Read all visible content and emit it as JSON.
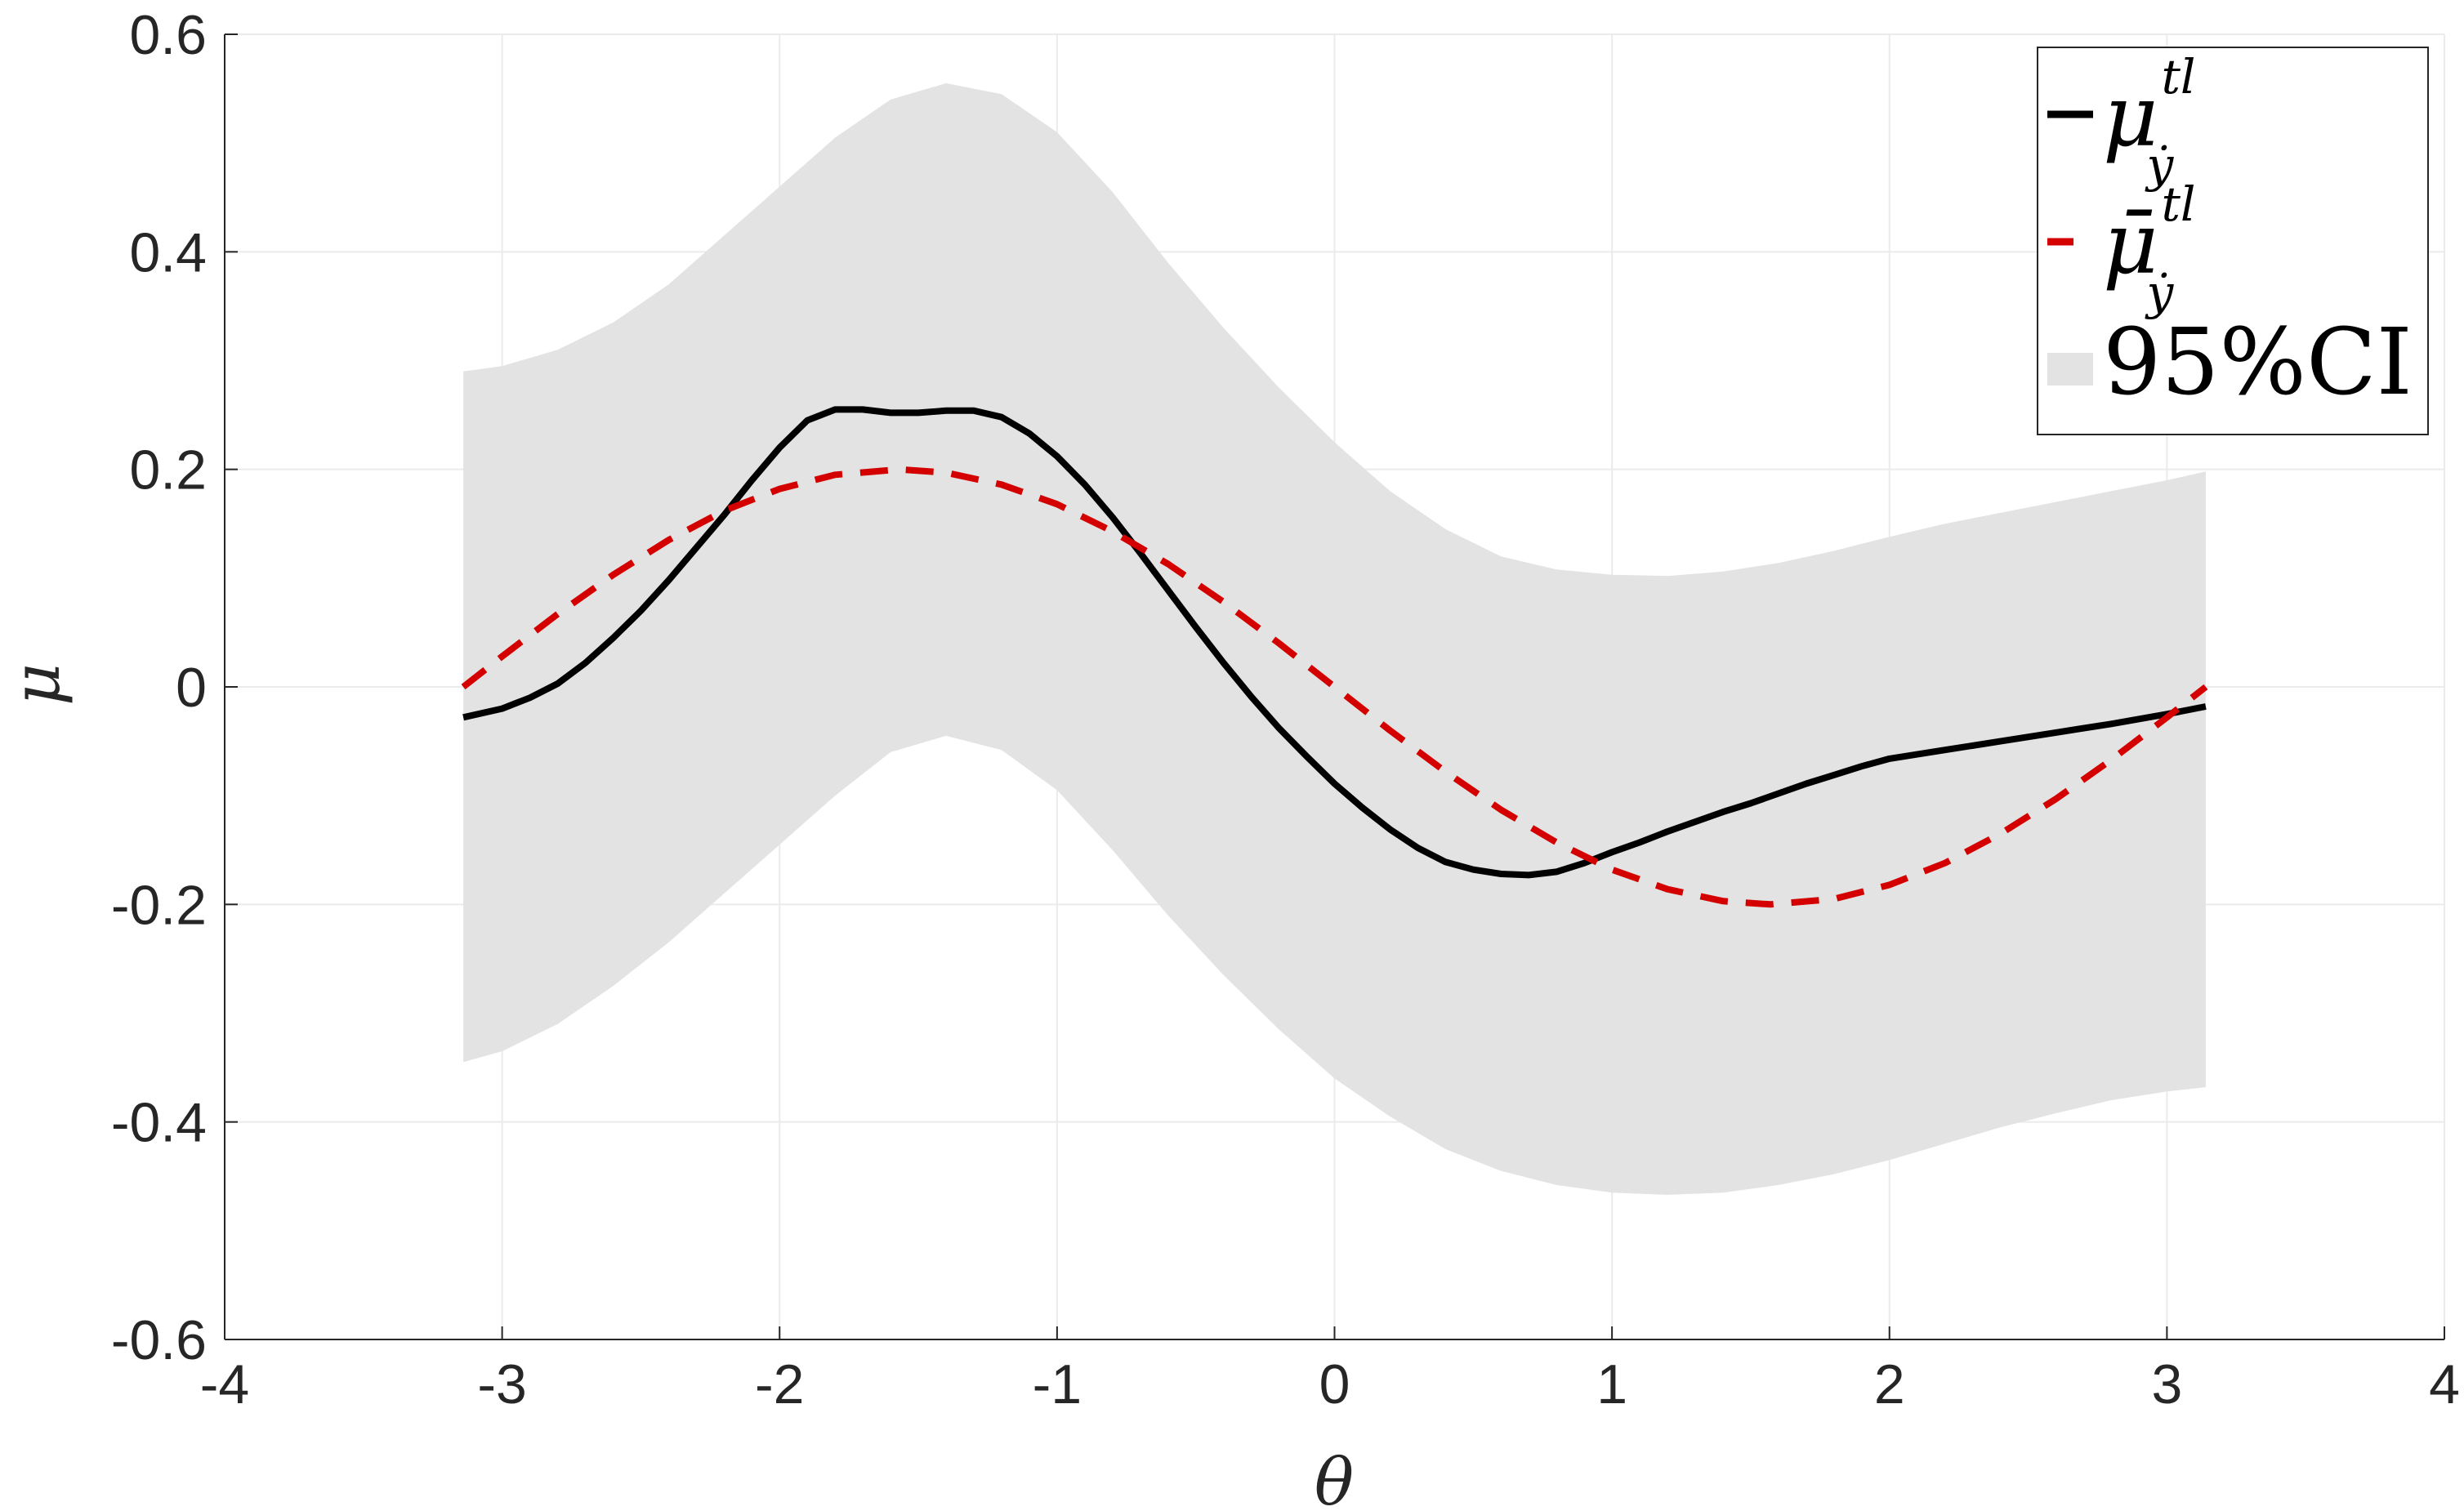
{
  "chart_data": {
    "type": "line",
    "title": "",
    "xlabel": "θ",
    "ylabel": "μ",
    "xlim": [
      -4,
      4
    ],
    "ylim": [
      -0.6,
      0.6
    ],
    "grid": true,
    "legend_position": "top-right",
    "x_ticks": [
      {
        "value": -4,
        "label": "-4"
      },
      {
        "value": -3,
        "label": "-3"
      },
      {
        "value": -2,
        "label": "-2"
      },
      {
        "value": -1,
        "label": "-1"
      },
      {
        "value": 0,
        "label": "0"
      },
      {
        "value": 1,
        "label": "1"
      },
      {
        "value": 2,
        "label": "2"
      },
      {
        "value": 3,
        "label": "3"
      },
      {
        "value": 4,
        "label": "4"
      }
    ],
    "y_ticks": [
      {
        "value": -0.6,
        "label": "-0.6"
      },
      {
        "value": -0.4,
        "label": "-0.4"
      },
      {
        "value": -0.2,
        "label": "-0.2"
      },
      {
        "value": 0,
        "label": "0"
      },
      {
        "value": 0.2,
        "label": "0.2"
      },
      {
        "value": 0.4,
        "label": "0.4"
      },
      {
        "value": 0.6,
        "label": "0.6"
      }
    ],
    "legend": {
      "mu": {
        "base": "μ",
        "sup": "tl",
        "sub": "ẏ"
      },
      "mubar": {
        "base": "μ̄",
        "sup": "tl",
        "sub": "ẏ"
      },
      "ci": "95%CI"
    },
    "colors": {
      "mu": "#000000",
      "mubar": "#d40000",
      "ci": "#e3e3e3",
      "grid": "#ebebeb",
      "axis": "#262626"
    },
    "series": [
      {
        "key": "mu",
        "style": "solid",
        "x": [
          -3.14,
          -3.0,
          -2.9,
          -2.8,
          -2.7,
          -2.6,
          -2.5,
          -2.4,
          -2.3,
          -2.2,
          -2.1,
          -2.0,
          -1.9,
          -1.8,
          -1.7,
          -1.6,
          -1.5,
          -1.4,
          -1.3,
          -1.2,
          -1.1,
          -1.0,
          -0.9,
          -0.8,
          -0.7,
          -0.6,
          -0.5,
          -0.4,
          -0.3,
          -0.2,
          -0.1,
          0.0,
          0.1,
          0.2,
          0.3,
          0.4,
          0.5,
          0.6,
          0.7,
          0.8,
          0.9,
          1.0,
          1.1,
          1.2,
          1.3,
          1.4,
          1.5,
          1.6,
          1.7,
          1.8,
          1.9,
          2.0,
          2.2,
          2.4,
          2.6,
          2.8,
          3.0,
          3.14
        ],
        "y": [
          -0.028,
          -0.02,
          -0.01,
          0.003,
          0.022,
          0.045,
          0.07,
          0.098,
          0.128,
          0.158,
          0.19,
          0.22,
          0.245,
          0.255,
          0.255,
          0.252,
          0.252,
          0.254,
          0.254,
          0.248,
          0.233,
          0.212,
          0.186,
          0.156,
          0.123,
          0.089,
          0.055,
          0.022,
          -0.009,
          -0.038,
          -0.064,
          -0.089,
          -0.111,
          -0.131,
          -0.148,
          -0.161,
          -0.168,
          -0.172,
          -0.173,
          -0.17,
          -0.162,
          -0.152,
          -0.143,
          -0.133,
          -0.124,
          -0.115,
          -0.107,
          -0.098,
          -0.089,
          -0.081,
          -0.073,
          -0.066,
          -0.058,
          -0.05,
          -0.042,
          -0.034,
          -0.025,
          -0.018
        ]
      },
      {
        "key": "mubar",
        "style": "dashed",
        "x": [
          -3.14,
          -3.0,
          -2.8,
          -2.6,
          -2.4,
          -2.2,
          -2.0,
          -1.8,
          -1.57,
          -1.4,
          -1.2,
          -1.0,
          -0.8,
          -0.6,
          -0.4,
          -0.2,
          0.0,
          0.2,
          0.4,
          0.6,
          0.8,
          1.0,
          1.2,
          1.4,
          1.57,
          1.8,
          2.0,
          2.2,
          2.4,
          2.6,
          2.8,
          3.0,
          3.14
        ],
        "y": [
          0.0,
          0.028,
          0.067,
          0.103,
          0.135,
          0.162,
          0.182,
          0.195,
          0.2,
          0.197,
          0.186,
          0.168,
          0.143,
          0.113,
          0.078,
          0.04,
          0.0,
          -0.04,
          -0.078,
          -0.113,
          -0.143,
          -0.168,
          -0.186,
          -0.197,
          -0.2,
          -0.195,
          -0.182,
          -0.162,
          -0.135,
          -0.103,
          -0.067,
          -0.028,
          0.0
        ]
      }
    ],
    "band": {
      "key": "ci",
      "x": [
        -3.14,
        -3.0,
        -2.8,
        -2.6,
        -2.4,
        -2.2,
        -2.0,
        -1.8,
        -1.6,
        -1.4,
        -1.2,
        -1.0,
        -0.8,
        -0.6,
        -0.4,
        -0.2,
        0.0,
        0.2,
        0.4,
        0.6,
        0.8,
        1.0,
        1.2,
        1.4,
        1.6,
        1.8,
        2.0,
        2.2,
        2.4,
        2.6,
        2.8,
        3.0,
        3.14
      ],
      "upper": [
        0.29,
        0.295,
        0.31,
        0.335,
        0.37,
        0.415,
        0.46,
        0.505,
        0.54,
        0.555,
        0.545,
        0.51,
        0.455,
        0.39,
        0.33,
        0.275,
        0.225,
        0.18,
        0.145,
        0.12,
        0.108,
        0.103,
        0.102,
        0.106,
        0.114,
        0.125,
        0.138,
        0.15,
        0.16,
        0.17,
        0.18,
        0.19,
        0.198
      ],
      "lower": [
        -0.345,
        -0.335,
        -0.31,
        -0.275,
        -0.235,
        -0.19,
        -0.145,
        -0.1,
        -0.06,
        -0.045,
        -0.058,
        -0.095,
        -0.15,
        -0.21,
        -0.265,
        -0.315,
        -0.36,
        -0.395,
        -0.425,
        -0.445,
        -0.458,
        -0.465,
        -0.467,
        -0.465,
        -0.458,
        -0.448,
        -0.435,
        -0.42,
        -0.405,
        -0.392,
        -0.38,
        -0.372,
        -0.368
      ]
    }
  }
}
